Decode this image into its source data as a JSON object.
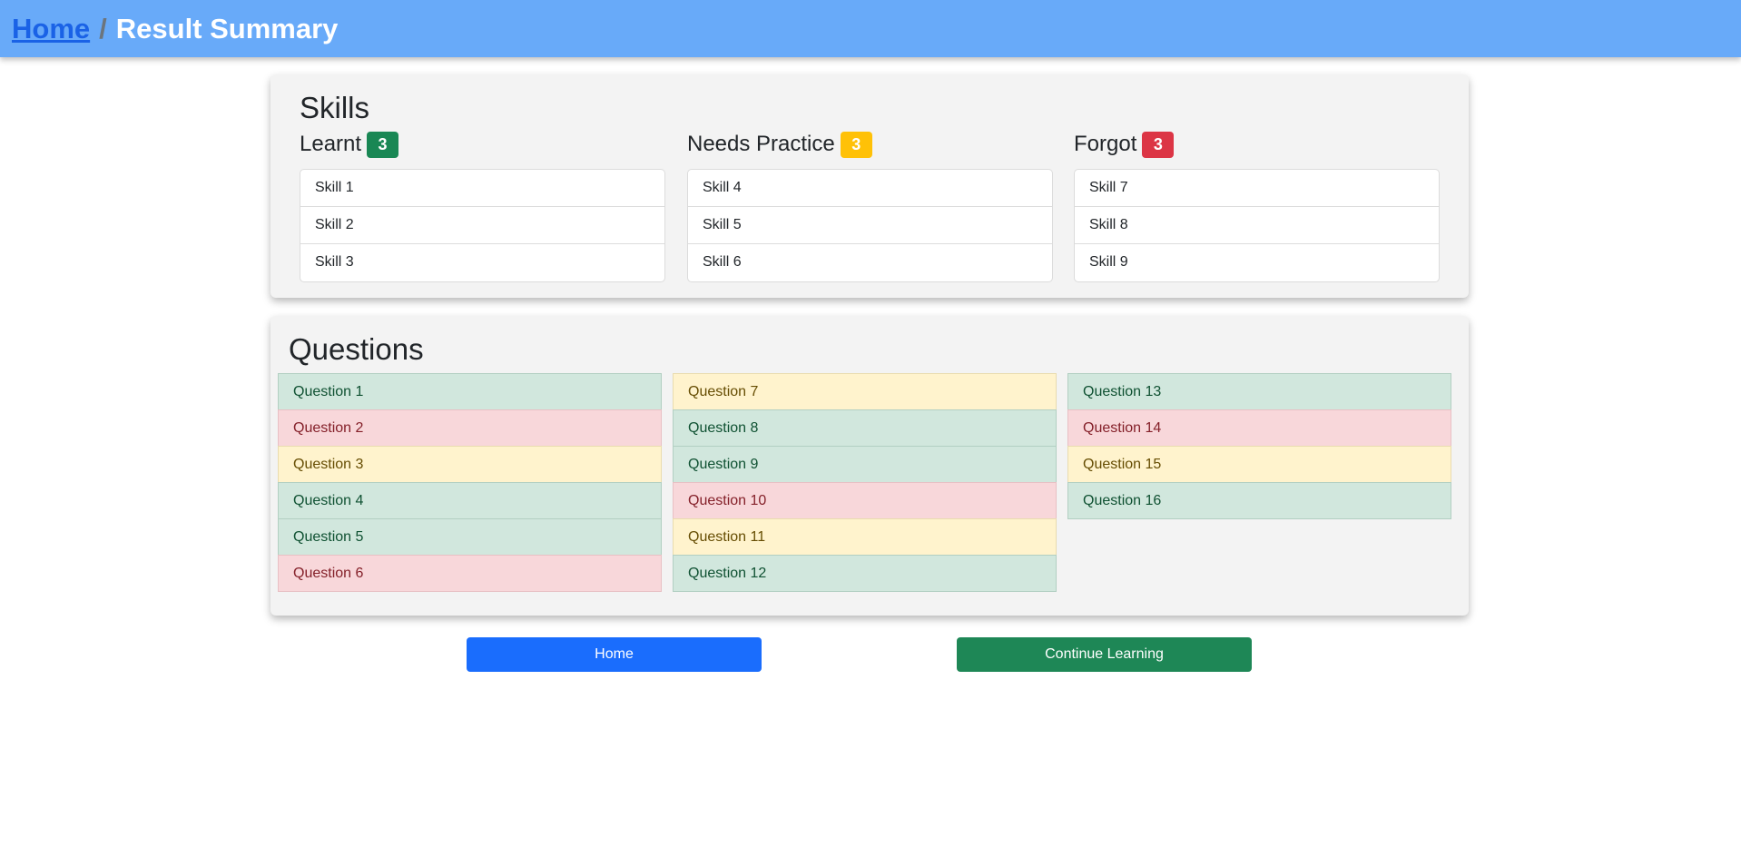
{
  "header": {
    "home_link": "Home",
    "separator": "/",
    "title": "Result Summary"
  },
  "skills": {
    "title": "Skills",
    "columns": [
      {
        "label": "Learnt",
        "count": "3",
        "color": "#198754",
        "items": [
          "Skill 1",
          "Skill 2",
          "Skill 3"
        ]
      },
      {
        "label": "Needs Practice",
        "count": "3",
        "color": "#ffc107",
        "items": [
          "Skill 4",
          "Skill 5",
          "Skill 6"
        ]
      },
      {
        "label": "Forgot",
        "count": "3",
        "color": "#dc3545",
        "items": [
          "Skill 7",
          "Skill 8",
          "Skill 9"
        ]
      }
    ]
  },
  "questions": {
    "title": "Questions",
    "columns": [
      [
        {
          "label": "Question 1",
          "status": "green"
        },
        {
          "label": "Question 2",
          "status": "red"
        },
        {
          "label": "Question 3",
          "status": "yellow"
        },
        {
          "label": "Question 4",
          "status": "green"
        },
        {
          "label": "Question 5",
          "status": "green"
        },
        {
          "label": "Question 6",
          "status": "red"
        }
      ],
      [
        {
          "label": "Question 7",
          "status": "yellow"
        },
        {
          "label": "Question 8",
          "status": "green"
        },
        {
          "label": "Question 9",
          "status": "green"
        },
        {
          "label": "Question 10",
          "status": "red"
        },
        {
          "label": "Question 11",
          "status": "yellow"
        },
        {
          "label": "Question 12",
          "status": "green"
        }
      ],
      [
        {
          "label": "Question 13",
          "status": "green"
        },
        {
          "label": "Question 14",
          "status": "red"
        },
        {
          "label": "Question 15",
          "status": "yellow"
        },
        {
          "label": "Question 16",
          "status": "green"
        }
      ]
    ]
  },
  "actions": {
    "home_label": "Home",
    "continue_label": "Continue Learning"
  }
}
